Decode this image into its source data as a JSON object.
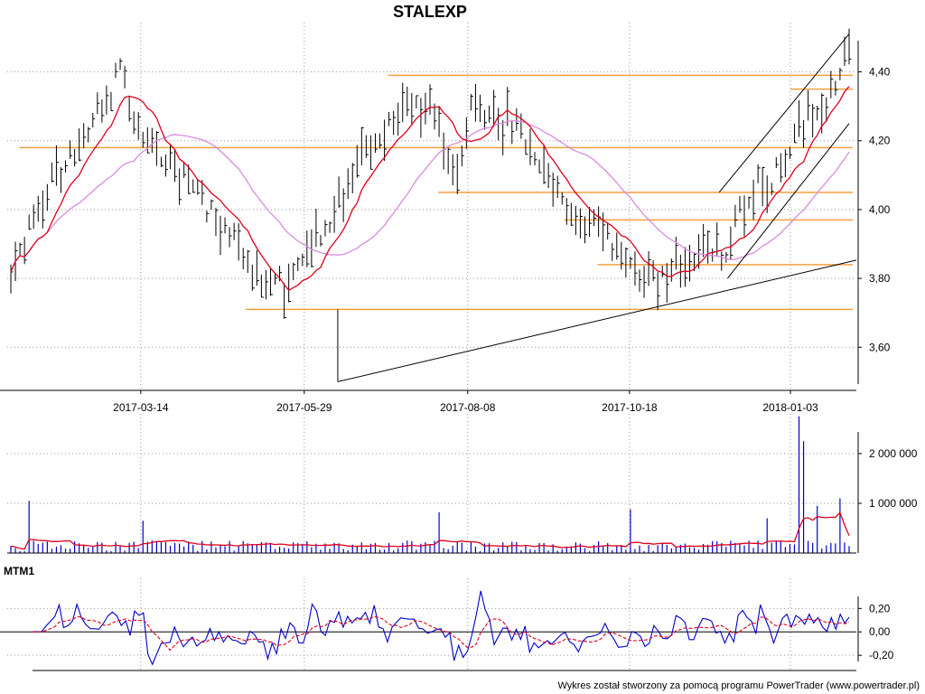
{
  "chart_data": [
    {
      "type": "ohlc",
      "title": "STALEXP",
      "x_tick_labels": [
        "2017-03-14",
        "2017-05-29",
        "2017-08-08",
        "2017-10-18",
        "2018-01-03"
      ],
      "y_tick_labels": [
        "3,60",
        "3,80",
        "4,00",
        "4,20",
        "4,40"
      ],
      "ylim": [
        3.48,
        4.53
      ],
      "grid": "dotted",
      "series": [
        {
          "color": "#e0001a",
          "kind": "moving-average-short"
        },
        {
          "color": "#d98be0",
          "kind": "moving-average-long"
        }
      ],
      "horizontal_levels": [
        {
          "value": 4.39,
          "color": "#f5a040"
        },
        {
          "value": 4.18,
          "color": "#f5a040"
        },
        {
          "value": 4.05,
          "color": "#f5a040"
        },
        {
          "value": 3.97,
          "color": "#f5a040"
        },
        {
          "value": 3.84,
          "color": "#f5a040"
        },
        {
          "value": 3.71,
          "color": "#f5a040"
        },
        {
          "value": 4.35,
          "color": "#f5a040"
        }
      ],
      "trendlines": [
        {
          "from": [
            0.39,
            3.5
          ],
          "to": [
            1.3,
            3.85
          ]
        },
        {
          "from": [
            0.39,
            3.5
          ],
          "to": [
            0.39,
            3.71
          ]
        }
      ],
      "anchors": [
        {
          "t": 0.0,
          "v": 3.82
        },
        {
          "t": 0.03,
          "v": 4.02
        },
        {
          "t": 0.07,
          "v": 4.15
        },
        {
          "t": 0.11,
          "v": 4.3
        },
        {
          "t": 0.13,
          "v": 4.42
        },
        {
          "t": 0.15,
          "v": 4.25
        },
        {
          "t": 0.18,
          "v": 4.16
        },
        {
          "t": 0.22,
          "v": 4.05
        },
        {
          "t": 0.26,
          "v": 3.94
        },
        {
          "t": 0.29,
          "v": 3.83
        },
        {
          "t": 0.31,
          "v": 3.77
        },
        {
          "t": 0.33,
          "v": 3.79
        },
        {
          "t": 0.35,
          "v": 3.86
        },
        {
          "t": 0.38,
          "v": 3.97
        },
        {
          "t": 0.41,
          "v": 4.12
        },
        {
          "t": 0.44,
          "v": 4.2
        },
        {
          "t": 0.47,
          "v": 4.3
        },
        {
          "t": 0.5,
          "v": 4.3
        },
        {
          "t": 0.53,
          "v": 4.1
        },
        {
          "t": 0.55,
          "v": 4.3
        },
        {
          "t": 0.58,
          "v": 4.27
        },
        {
          "t": 0.61,
          "v": 4.22
        },
        {
          "t": 0.64,
          "v": 4.12
        },
        {
          "t": 0.67,
          "v": 3.97
        },
        {
          "t": 0.71,
          "v": 3.92
        },
        {
          "t": 0.74,
          "v": 3.85
        },
        {
          "t": 0.77,
          "v": 3.78
        },
        {
          "t": 0.8,
          "v": 3.84
        },
        {
          "t": 0.83,
          "v": 3.9
        },
        {
          "t": 0.85,
          "v": 3.86
        },
        {
          "t": 0.88,
          "v": 4.05
        },
        {
          "t": 0.91,
          "v": 4.1
        },
        {
          "t": 0.94,
          "v": 4.25
        },
        {
          "t": 0.97,
          "v": 4.28
        },
        {
          "t": 1.0,
          "v": 4.48
        }
      ]
    },
    {
      "type": "bar",
      "panel": "volume",
      "y_tick_labels": [
        "1 000 000",
        "2 000 000"
      ],
      "ylim": [
        0,
        2800000
      ],
      "bar_color": "#0000cc",
      "average_color": "#e0001a",
      "baseline_level": 120000,
      "spikes": [
        {
          "t": 0.02,
          "value": 1050000
        },
        {
          "t": 0.155,
          "value": 650000
        },
        {
          "t": 0.51,
          "value": 820000
        },
        {
          "t": 0.74,
          "value": 880000
        },
        {
          "t": 0.9,
          "value": 700000
        },
        {
          "t": 0.94,
          "value": 2750000
        },
        {
          "t": 0.945,
          "value": 2250000
        },
        {
          "t": 0.96,
          "value": 950000
        },
        {
          "t": 0.99,
          "value": 1100000
        }
      ]
    },
    {
      "type": "line",
      "panel": "oscillator",
      "title": "MTM1",
      "y_tick_labels": [
        "-0,20",
        "0,00",
        "0,20"
      ],
      "ylim": [
        -0.33,
        0.38
      ],
      "series": [
        {
          "color": "#0000cc",
          "kind": "momentum"
        },
        {
          "color": "#e0001a",
          "kind": "signal",
          "dashed": true
        }
      ]
    }
  ],
  "footer": "Wykres został stworzony za pomocą programu PowerTrader (www.powertrader.pl)"
}
